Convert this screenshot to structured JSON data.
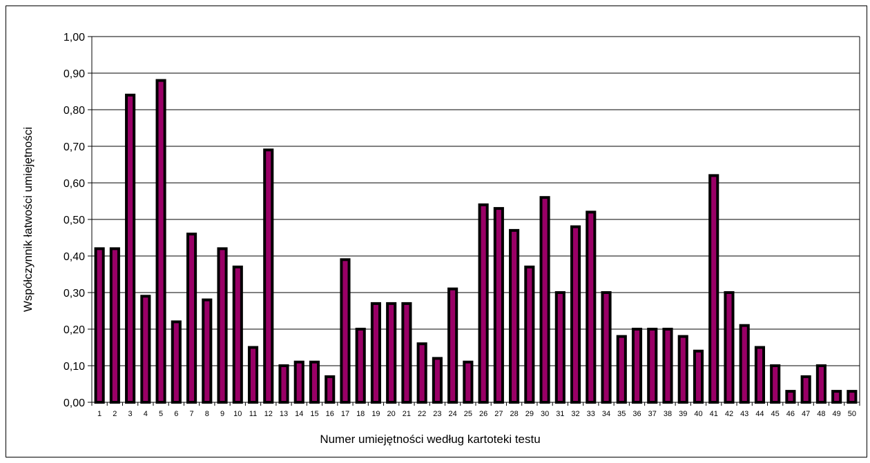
{
  "chart_data": {
    "type": "bar",
    "title": "",
    "xlabel": "Numer umiejętności według kartoteki testu",
    "ylabel": "Współczynnik łatwości umiejętności",
    "ylim": [
      0,
      1
    ],
    "y_ticks": [
      "0,00",
      "0,10",
      "0,20",
      "0,30",
      "0,40",
      "0,50",
      "0,60",
      "0,70",
      "0,80",
      "0,90",
      "1,00"
    ],
    "grid": true,
    "legend": "none",
    "categories": [
      "1",
      "2",
      "3",
      "4",
      "5",
      "6",
      "7",
      "8",
      "9",
      "10",
      "11",
      "12",
      "13",
      "14",
      "15",
      "16",
      "17",
      "18",
      "19",
      "20",
      "21",
      "22",
      "23",
      "24",
      "25",
      "26",
      "27",
      "28",
      "29",
      "30",
      "31",
      "32",
      "33",
      "34",
      "35",
      "36",
      "37",
      "38",
      "39",
      "40",
      "41",
      "42",
      "43",
      "44",
      "45",
      "46",
      "47",
      "48",
      "49",
      "50"
    ],
    "values": [
      0.42,
      0.42,
      0.84,
      0.29,
      0.88,
      0.22,
      0.46,
      0.28,
      0.42,
      0.37,
      0.15,
      0.69,
      0.1,
      0.11,
      0.11,
      0.07,
      0.39,
      0.2,
      0.27,
      0.27,
      0.27,
      0.16,
      0.12,
      0.31,
      0.11,
      0.54,
      0.53,
      0.47,
      0.37,
      0.56,
      0.3,
      0.48,
      0.52,
      0.3,
      0.18,
      0.2,
      0.2,
      0.2,
      0.18,
      0.14,
      0.62,
      0.3,
      0.21,
      0.15,
      0.1,
      0.03,
      0.07,
      0.1,
      0.03,
      0.03
    ],
    "colors": {
      "bar_fill": "#990066",
      "bar_edge": "#000000",
      "grid": "#000000"
    }
  }
}
